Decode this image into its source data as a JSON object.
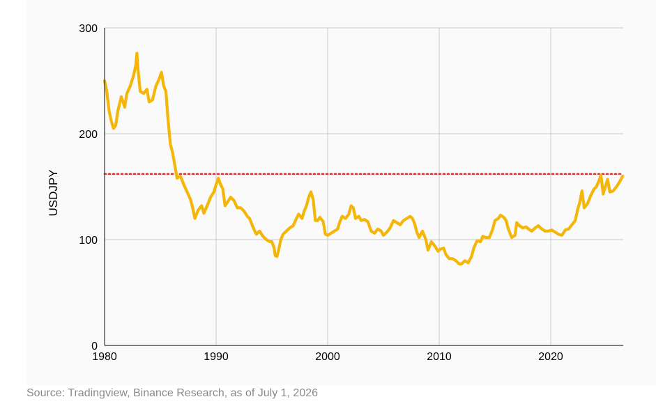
{
  "chart_data": {
    "type": "line",
    "title": "",
    "xlabel": "",
    "ylabel": "USDJPY",
    "xlim": [
      1980,
      2026.5
    ],
    "ylim": [
      0,
      300
    ],
    "x_ticks": [
      1980,
      1990,
      2000,
      2010,
      2020
    ],
    "y_ticks": [
      0,
      100,
      200,
      300
    ],
    "grid": true,
    "legend": "none",
    "series": [
      {
        "color": "#f5b60a",
        "points": [
          [
            1980.0,
            250
          ],
          [
            1980.2,
            240
          ],
          [
            1980.4,
            222
          ],
          [
            1980.6,
            212
          ],
          [
            1980.8,
            205
          ],
          [
            1981.0,
            208
          ],
          [
            1981.2,
            222
          ],
          [
            1981.5,
            235
          ],
          [
            1981.8,
            225
          ],
          [
            1982.0,
            238
          ],
          [
            1982.3,
            245
          ],
          [
            1982.6,
            255
          ],
          [
            1982.8,
            265
          ],
          [
            1982.9,
            276
          ],
          [
            1983.0,
            260
          ],
          [
            1983.2,
            240
          ],
          [
            1983.5,
            238
          ],
          [
            1983.8,
            242
          ],
          [
            1984.0,
            230
          ],
          [
            1984.3,
            232
          ],
          [
            1984.6,
            245
          ],
          [
            1984.9,
            252
          ],
          [
            1985.1,
            258
          ],
          [
            1985.3,
            245
          ],
          [
            1985.5,
            240
          ],
          [
            1985.7,
            212
          ],
          [
            1985.9,
            190
          ],
          [
            1986.1,
            182
          ],
          [
            1986.3,
            170
          ],
          [
            1986.5,
            158
          ],
          [
            1986.8,
            160
          ],
          [
            1987.1,
            152
          ],
          [
            1987.4,
            145
          ],
          [
            1987.7,
            138
          ],
          [
            1987.9,
            130
          ],
          [
            1988.1,
            120
          ],
          [
            1988.4,
            128
          ],
          [
            1988.7,
            132
          ],
          [
            1988.9,
            125
          ],
          [
            1989.2,
            132
          ],
          [
            1989.5,
            140
          ],
          [
            1989.8,
            145
          ],
          [
            1990.0,
            152
          ],
          [
            1990.2,
            158
          ],
          [
            1990.4,
            152
          ],
          [
            1990.6,
            148
          ],
          [
            1990.8,
            132
          ],
          [
            1991.0,
            135
          ],
          [
            1991.3,
            140
          ],
          [
            1991.6,
            137
          ],
          [
            1991.9,
            130
          ],
          [
            1992.2,
            130
          ],
          [
            1992.5,
            127
          ],
          [
            1992.8,
            122
          ],
          [
            1993.0,
            120
          ],
          [
            1993.3,
            112
          ],
          [
            1993.6,
            105
          ],
          [
            1993.9,
            108
          ],
          [
            1994.2,
            103
          ],
          [
            1994.5,
            100
          ],
          [
            1994.8,
            98
          ],
          [
            1995.0,
            98
          ],
          [
            1995.2,
            92
          ],
          [
            1995.3,
            85
          ],
          [
            1995.45,
            84
          ],
          [
            1995.6,
            90
          ],
          [
            1995.8,
            100
          ],
          [
            1996.0,
            105
          ],
          [
            1996.3,
            108
          ],
          [
            1996.6,
            111
          ],
          [
            1996.9,
            113
          ],
          [
            1997.2,
            120
          ],
          [
            1997.4,
            124
          ],
          [
            1997.7,
            120
          ],
          [
            1997.9,
            127
          ],
          [
            1998.1,
            132
          ],
          [
            1998.3,
            140
          ],
          [
            1998.5,
            145
          ],
          [
            1998.7,
            138
          ],
          [
            1998.9,
            118
          ],
          [
            1999.1,
            118
          ],
          [
            1999.3,
            121
          ],
          [
            1999.6,
            117
          ],
          [
            1999.8,
            105
          ],
          [
            2000.0,
            104
          ],
          [
            2000.3,
            106
          ],
          [
            2000.6,
            108
          ],
          [
            2000.9,
            110
          ],
          [
            2001.1,
            117
          ],
          [
            2001.3,
            122
          ],
          [
            2001.6,
            120
          ],
          [
            2001.9,
            124
          ],
          [
            2002.1,
            132
          ],
          [
            2002.3,
            130
          ],
          [
            2002.5,
            120
          ],
          [
            2002.8,
            122
          ],
          [
            2003.0,
            118
          ],
          [
            2003.3,
            119
          ],
          [
            2003.6,
            117
          ],
          [
            2003.9,
            108
          ],
          [
            2004.2,
            106
          ],
          [
            2004.5,
            110
          ],
          [
            2004.8,
            108
          ],
          [
            2005.0,
            104
          ],
          [
            2005.3,
            107
          ],
          [
            2005.6,
            111
          ],
          [
            2005.9,
            118
          ],
          [
            2006.2,
            116
          ],
          [
            2006.5,
            114
          ],
          [
            2006.8,
            118
          ],
          [
            2007.1,
            120
          ],
          [
            2007.4,
            122
          ],
          [
            2007.6,
            120
          ],
          [
            2007.8,
            115
          ],
          [
            2008.0,
            107
          ],
          [
            2008.2,
            102
          ],
          [
            2008.5,
            108
          ],
          [
            2008.8,
            100
          ],
          [
            2009.0,
            90
          ],
          [
            2009.3,
            98
          ],
          [
            2009.6,
            94
          ],
          [
            2009.9,
            89
          ],
          [
            2010.1,
            91
          ],
          [
            2010.4,
            92
          ],
          [
            2010.6,
            86
          ],
          [
            2010.9,
            82
          ],
          [
            2011.2,
            82
          ],
          [
            2011.5,
            80
          ],
          [
            2011.8,
            77
          ],
          [
            2012.0,
            77
          ],
          [
            2012.3,
            80
          ],
          [
            2012.6,
            78
          ],
          [
            2012.9,
            84
          ],
          [
            2013.1,
            92
          ],
          [
            2013.4,
            99
          ],
          [
            2013.7,
            98
          ],
          [
            2013.9,
            103
          ],
          [
            2014.2,
            102
          ],
          [
            2014.5,
            102
          ],
          [
            2014.8,
            110
          ],
          [
            2015.0,
            118
          ],
          [
            2015.3,
            120
          ],
          [
            2015.5,
            123
          ],
          [
            2015.8,
            121
          ],
          [
            2016.0,
            118
          ],
          [
            2016.2,
            110
          ],
          [
            2016.5,
            102
          ],
          [
            2016.8,
            104
          ],
          [
            2016.95,
            116
          ],
          [
            2017.2,
            113
          ],
          [
            2017.5,
            111
          ],
          [
            2017.8,
            112
          ],
          [
            2018.0,
            110
          ],
          [
            2018.3,
            108
          ],
          [
            2018.6,
            111
          ],
          [
            2018.9,
            113
          ],
          [
            2019.2,
            110
          ],
          [
            2019.5,
            108
          ],
          [
            2019.8,
            108
          ],
          [
            2020.1,
            109
          ],
          [
            2020.4,
            107
          ],
          [
            2020.7,
            105
          ],
          [
            2021.0,
            104
          ],
          [
            2021.3,
            109
          ],
          [
            2021.6,
            110
          ],
          [
            2021.9,
            114
          ],
          [
            2022.2,
            118
          ],
          [
            2022.4,
            128
          ],
          [
            2022.6,
            135
          ],
          [
            2022.8,
            146
          ],
          [
            2023.0,
            130
          ],
          [
            2023.3,
            134
          ],
          [
            2023.6,
            142
          ],
          [
            2023.9,
            148
          ],
          [
            2024.1,
            150
          ],
          [
            2024.3,
            155
          ],
          [
            2024.5,
            161
          ],
          [
            2024.7,
            143
          ],
          [
            2024.9,
            150
          ],
          [
            2025.1,
            157
          ],
          [
            2025.3,
            145
          ],
          [
            2025.6,
            146
          ],
          [
            2025.9,
            150
          ],
          [
            2026.2,
            155
          ],
          [
            2026.45,
            160
          ]
        ]
      }
    ],
    "reference_line": {
      "y": 162,
      "color": "#e03030",
      "style": "dotted"
    }
  },
  "source_note": "Source: Tradingview, Binance Research, as of July 1, 2026"
}
